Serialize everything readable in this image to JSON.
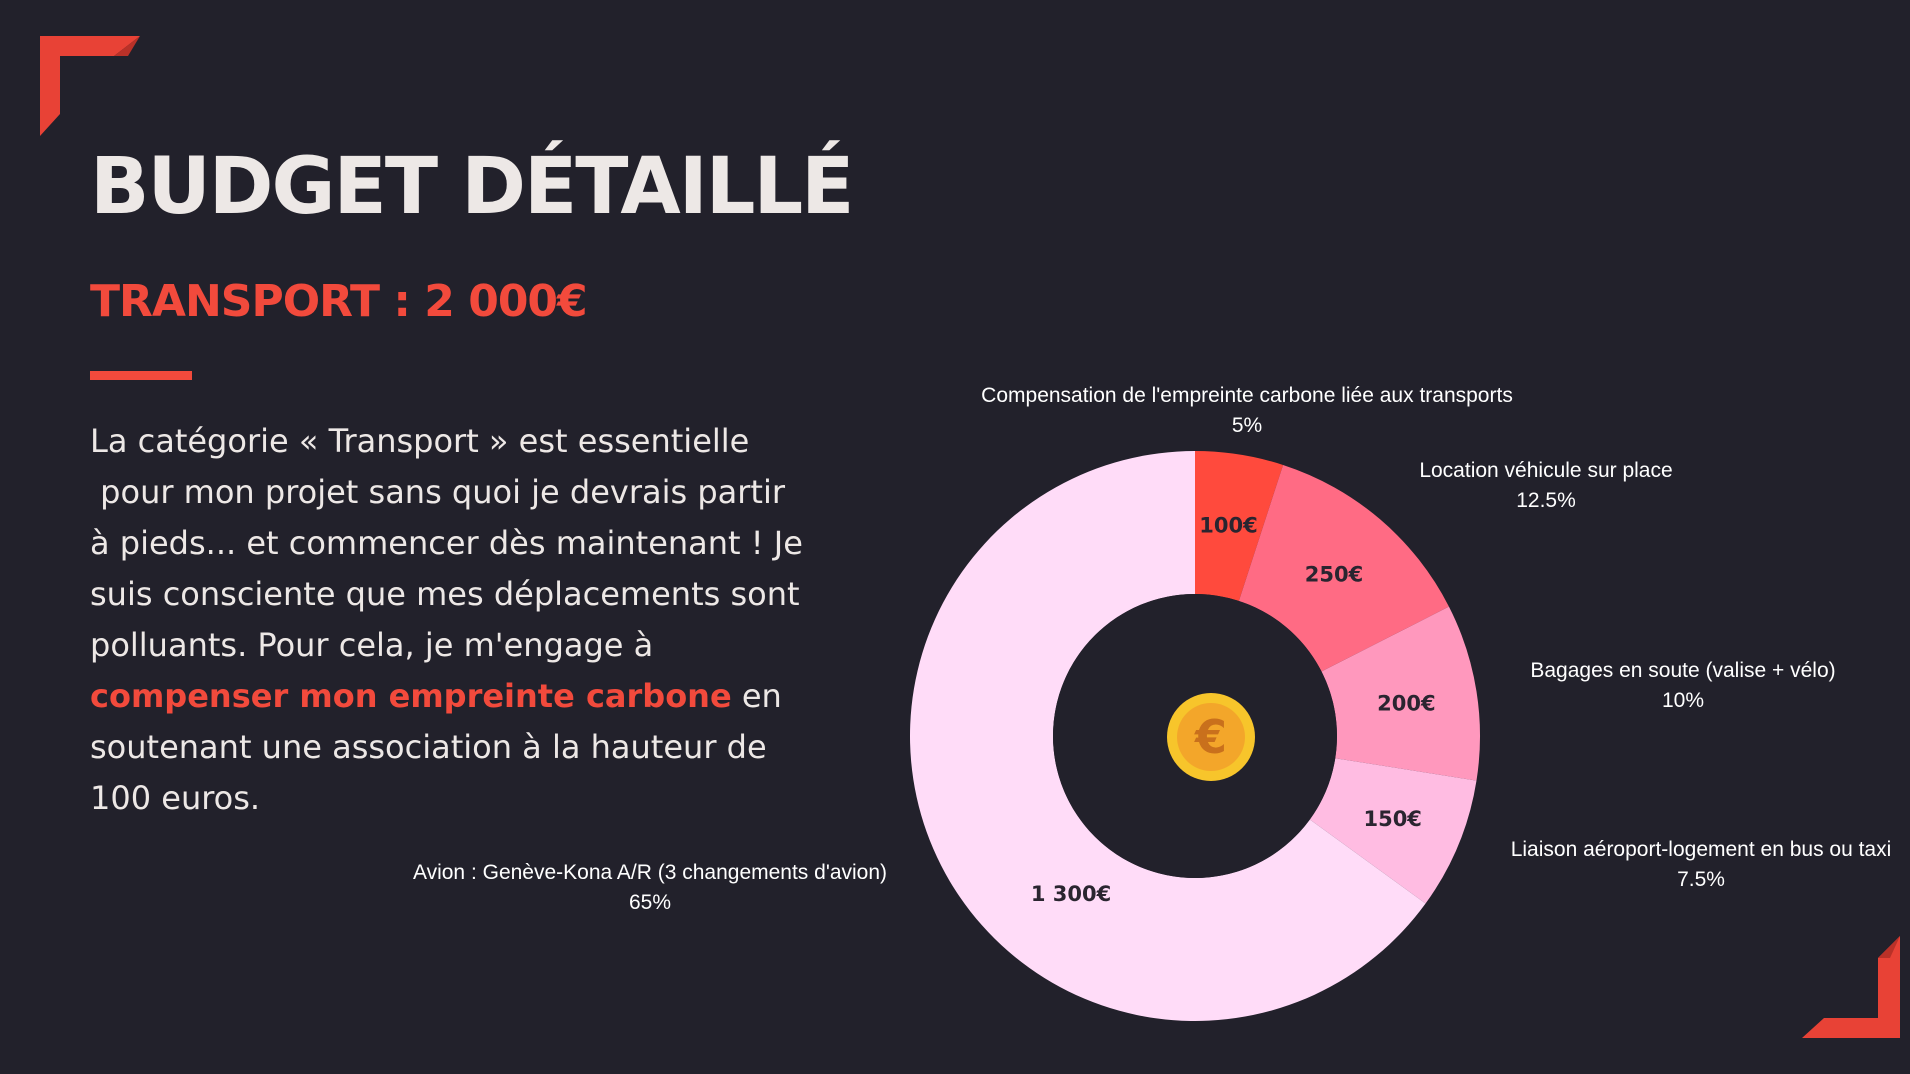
{
  "title": "BUDGET DÉTAILLÉ",
  "subtitle": "TRANSPORT : 2 000€",
  "body": {
    "line1": "La catégorie « Transport » est essentielle",
    "line2": " pour mon projet sans quoi je devrais partir",
    "line3": "à pieds... et commencer dès maintenant ! Je",
    "line4": "suis consciente que mes déplacements sont",
    "line5": "polluants. Pour cela, je m'engage à",
    "highlight": "compenser mon empreinte carbone",
    "line6_rest": " en",
    "line7": "soutenant une association à la hauteur de",
    "line8": "100 euros."
  },
  "colors": {
    "background": "#22212b",
    "accent": "#f24a3c",
    "text": "#ede8e6"
  },
  "icons": {
    "center": "euro-coin-icon"
  },
  "chart_data": {
    "type": "pie",
    "style": "donut",
    "total": 2000,
    "slices": [
      {
        "name": "Compensation de l'empreinte carbone liée aux transports",
        "value": 100,
        "value_label": "100€",
        "percent_label": "5%",
        "color": "#ff4a3d"
      },
      {
        "name": "Location véhicule sur place",
        "value": 250,
        "value_label": "250€",
        "percent_label": "12.5%",
        "color": "#ff6b84"
      },
      {
        "name": "Bagages en soute (valise + vélo)",
        "value": 200,
        "value_label": "200€",
        "percent_label": "10%",
        "color": "#ff98bd"
      },
      {
        "name": "Liaison aéroport-logement en bus ou taxi",
        "value": 150,
        "value_label": "150€",
        "percent_label": "7.5%",
        "color": "#ffbce2"
      },
      {
        "name": "Avion : Genève-Kona A/R (3 changements d'avion)",
        "value": 1300,
        "value_label": "1 300€",
        "percent_label": "65%",
        "color": "#ffdcf8"
      }
    ]
  }
}
